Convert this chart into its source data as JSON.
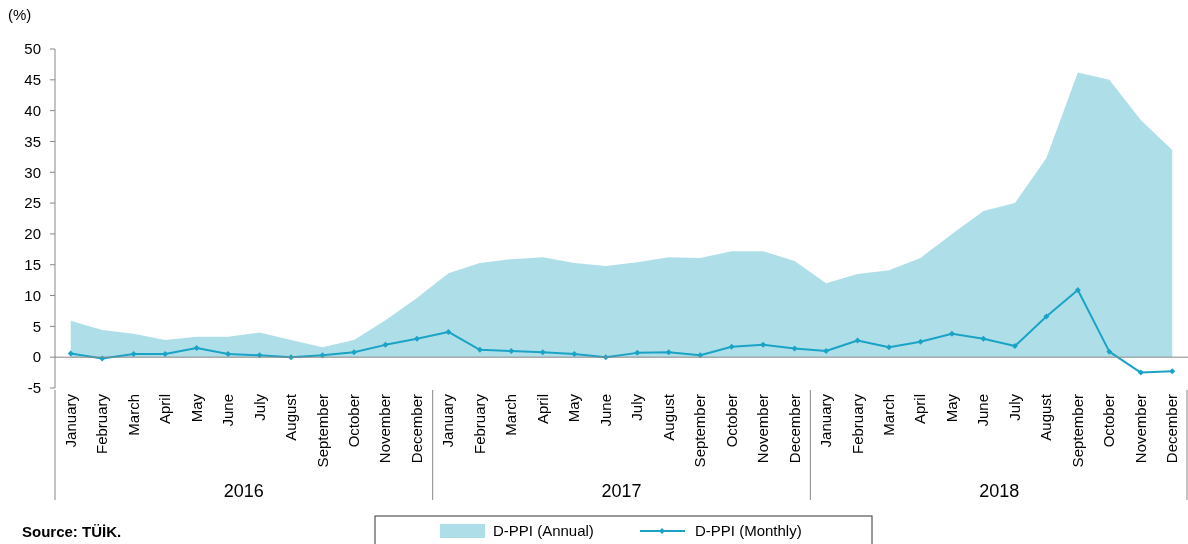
{
  "chart_data": {
    "type": "area",
    "ylabel": "(%)",
    "categories": [
      "January",
      "February",
      "March",
      "April",
      "May",
      "June",
      "July",
      "August",
      "September",
      "October",
      "November",
      "December",
      "January",
      "February",
      "March",
      "April",
      "May",
      "June",
      "July",
      "August",
      "September",
      "October",
      "November",
      "December",
      "January",
      "February",
      "March",
      "April",
      "May",
      "June",
      "July",
      "August",
      "September",
      "October",
      "November",
      "December"
    ],
    "series": [
      {
        "name": "D-PPI (Annual)",
        "color": "#aedfe9",
        "values": [
          5.9,
          4.4,
          3.8,
          2.8,
          3.3,
          3.3,
          4.0,
          2.8,
          1.6,
          2.8,
          6.0,
          9.6,
          13.6,
          15.3,
          15.9,
          16.2,
          15.3,
          14.8,
          15.4,
          16.2,
          16.1,
          17.2,
          17.2,
          15.6,
          12.0,
          13.5,
          14.1,
          16.1,
          20.0,
          23.7,
          25.0,
          32.3,
          46.2,
          45.0,
          38.5,
          33.6
        ]
      },
      {
        "name": "D-PPI (Monthly)",
        "type": "line",
        "color": "#1ba3c6",
        "marker": "diamond",
        "values": [
          0.6,
          -0.2,
          0.5,
          0.5,
          1.5,
          0.5,
          0.3,
          0.0,
          0.3,
          0.8,
          2.0,
          3.0,
          4.1,
          1.2,
          1.0,
          0.8,
          0.5,
          0.0,
          0.7,
          0.8,
          0.3,
          1.7,
          2.0,
          1.4,
          1.0,
          2.7,
          1.6,
          2.5,
          3.8,
          3.0,
          1.8,
          6.6,
          10.9,
          0.9,
          -2.5,
          -2.3
        ]
      }
    ],
    "ylim": [
      -5,
      50
    ],
    "yticks": [
      -5,
      0,
      5,
      10,
      15,
      20,
      25,
      30,
      35,
      40,
      45,
      50
    ],
    "legend": "bottom",
    "grid": false,
    "annotations": [
      "Source: TÜİK.",
      "2016",
      "2017",
      "2018"
    ]
  }
}
